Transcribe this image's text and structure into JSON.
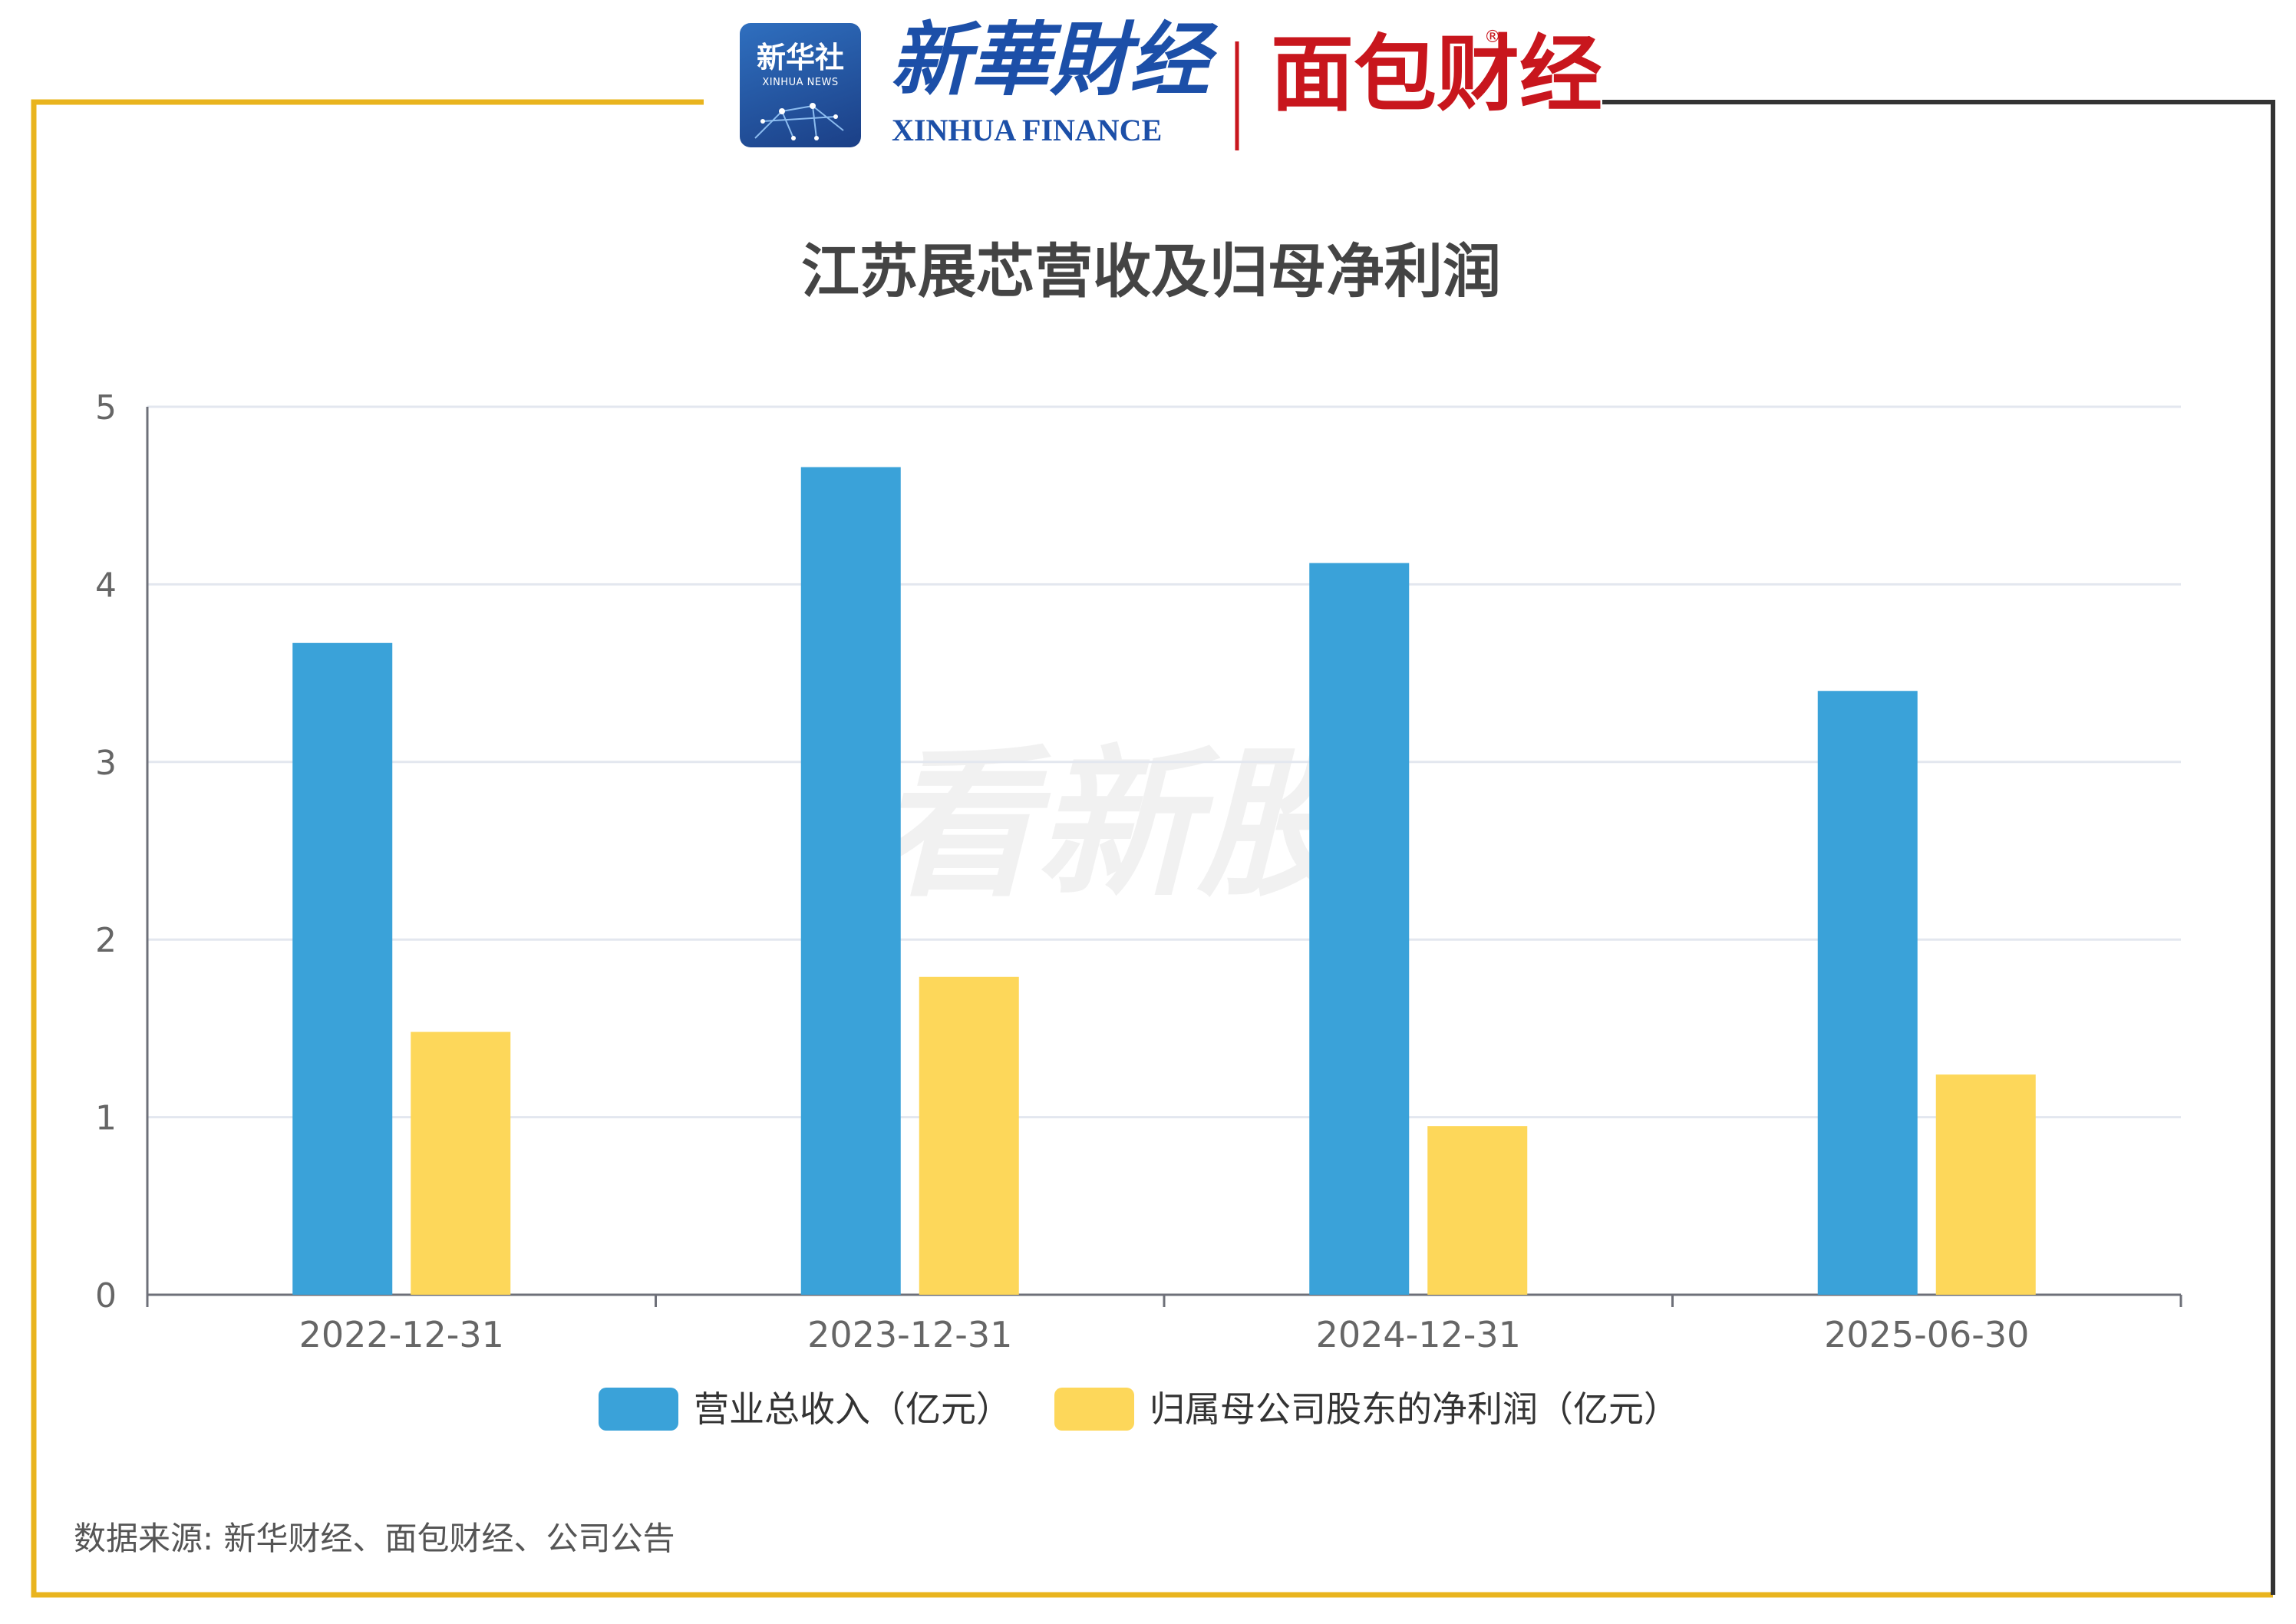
{
  "header": {
    "logo_xinhua_cn": "新华社",
    "logo_xinhua_en": "XINHUA NEWS",
    "xinhua_finance_cn": "新華財经",
    "xinhua_finance_en": "XINHUA FINANCE",
    "mianbao_logo": "面包财经",
    "reg_mark": "®"
  },
  "watermark": "看新股",
  "source": "数据来源: 新华财经、面包财经、公司公告",
  "colors": {
    "revenue": "#3AA2D9",
    "profit": "#FDD75A",
    "frame_gold": "#E9B41E",
    "frame_dark": "#333333"
  },
  "chart_data": {
    "type": "bar",
    "title": "江苏展芯营收及归母净利润",
    "categories": [
      "2022-12-31",
      "2023-12-31",
      "2024-12-31",
      "2025-06-30"
    ],
    "series": [
      {
        "name": "营业总收入（亿元）",
        "values": [
          3.67,
          4.66,
          4.12,
          3.4
        ]
      },
      {
        "name": "归属母公司股东的净利润（亿元）",
        "values": [
          1.48,
          1.79,
          0.95,
          1.24
        ]
      }
    ],
    "y_ticks": [
      "0",
      "1",
      "2",
      "3",
      "4",
      "5"
    ],
    "ylim": [
      0,
      5
    ],
    "grid": true,
    "legend_position": "bottom"
  }
}
